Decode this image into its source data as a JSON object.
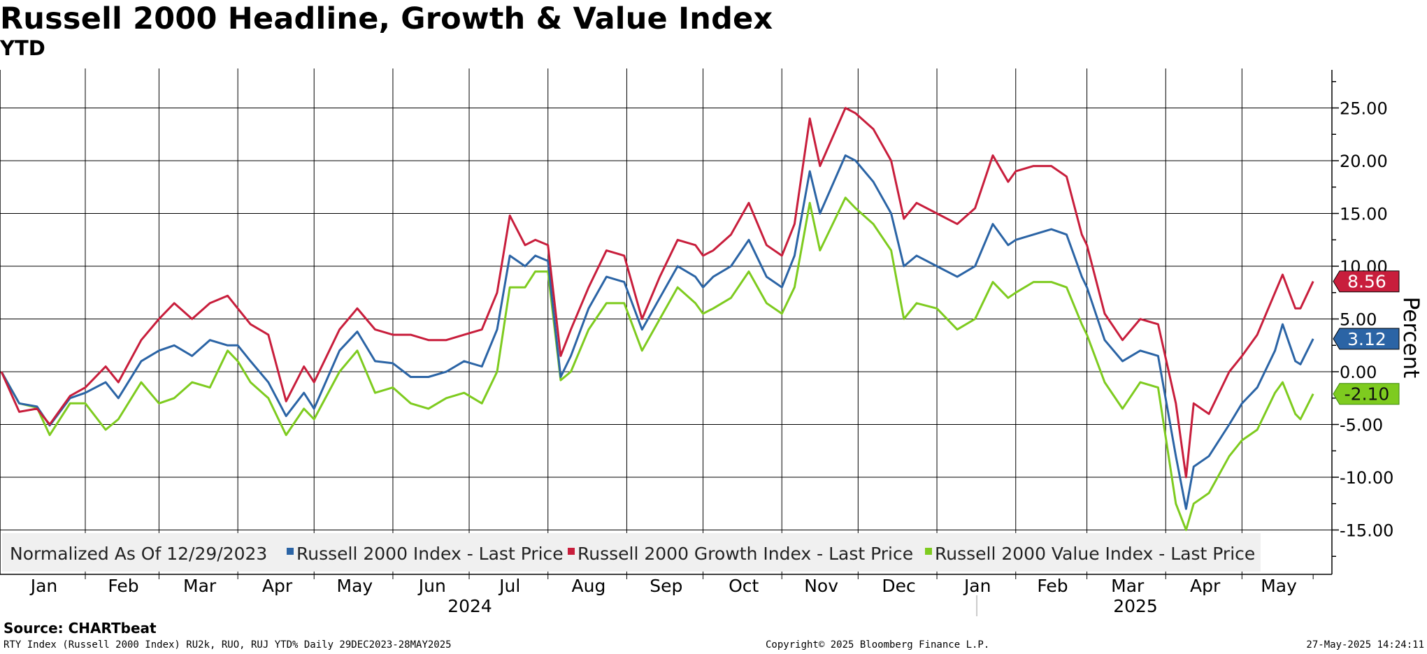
{
  "title": "Russell 2000 Headline, Growth & Value Index",
  "subtitle": "YTD",
  "source": "Source: CHARTbeat",
  "footer_left": "RTY Index (Russell 2000 Index) RU2k, RUO, RUJ YTD%  Daily 29DEC2023-28MAY2025",
  "footer_center": "Copyright© 2025 Bloomberg Finance L.P.",
  "footer_right": "27-May-2025 14:24:11",
  "colors": {
    "headline": "#2b64a5",
    "growth": "#c81e3c",
    "value": "#7ecb1f",
    "grid": "#000000"
  },
  "chart_data": {
    "type": "line",
    "title": "Russell 2000 Headline, Growth & Value Index",
    "subtitle": "YTD",
    "ylabel": "Percent",
    "ylim": [
      -17.5,
      28.5
    ],
    "yticks": [
      "25.00",
      "20.00",
      "15.00",
      "10.00",
      "5.00",
      "0.00",
      "-5.00",
      "-10.00",
      "-15.00"
    ],
    "ytick_values": [
      25,
      20,
      15,
      10,
      5,
      0,
      -5,
      -10,
      -15
    ],
    "months": [
      "Jan",
      "Feb",
      "Mar",
      "Apr",
      "May",
      "Jun",
      "Jul",
      "Aug",
      "Sep",
      "Oct",
      "Nov",
      "Dec",
      "Jan",
      "Feb",
      "Mar",
      "Apr",
      "May"
    ],
    "years": [
      "2024",
      "2025"
    ],
    "legend_prefix": "Normalized As Of 12/29/2023",
    "x_start": "2023-12-29",
    "x_end": "2025-05-28",
    "series": [
      {
        "name": "Russell 2000 Index - Last Price",
        "key": "headline",
        "last_label": "3.12",
        "last": 3.12,
        "points": [
          [
            "2023-12-29",
            0
          ],
          [
            "2024-01-05",
            -3.0
          ],
          [
            "2024-01-12",
            -3.3
          ],
          [
            "2024-01-17",
            -5.1
          ],
          [
            "2024-01-25",
            -2.5
          ],
          [
            "2024-01-31",
            -2.0
          ],
          [
            "2024-02-08",
            -1.0
          ],
          [
            "2024-02-13",
            -2.5
          ],
          [
            "2024-02-22",
            1.0
          ],
          [
            "2024-02-29",
            2.0
          ],
          [
            "2024-03-06",
            2.5
          ],
          [
            "2024-03-13",
            1.5
          ],
          [
            "2024-03-20",
            3.0
          ],
          [
            "2024-03-27",
            2.5
          ],
          [
            "2024-03-31",
            2.5
          ],
          [
            "2024-04-05",
            1.0
          ],
          [
            "2024-04-12",
            -1.0
          ],
          [
            "2024-04-19",
            -4.2
          ],
          [
            "2024-04-26",
            -2.0
          ],
          [
            "2024-04-30",
            -3.5
          ],
          [
            "2024-05-10",
            2.0
          ],
          [
            "2024-05-17",
            3.8
          ],
          [
            "2024-05-24",
            1.0
          ],
          [
            "2024-05-31",
            0.8
          ],
          [
            "2024-06-07",
            -0.5
          ],
          [
            "2024-06-14",
            -0.5
          ],
          [
            "2024-06-21",
            0.0
          ],
          [
            "2024-06-28",
            1.0
          ],
          [
            "2024-07-05",
            0.5
          ],
          [
            "2024-07-11",
            4.0
          ],
          [
            "2024-07-16",
            11.0
          ],
          [
            "2024-07-22",
            10.0
          ],
          [
            "2024-07-26",
            11.0
          ],
          [
            "2024-07-31",
            10.5
          ],
          [
            "2024-08-05",
            -0.5
          ],
          [
            "2024-08-09",
            1.5
          ],
          [
            "2024-08-16",
            6.0
          ],
          [
            "2024-08-23",
            9.0
          ],
          [
            "2024-08-30",
            8.5
          ],
          [
            "2024-09-06",
            4.0
          ],
          [
            "2024-09-13",
            7.0
          ],
          [
            "2024-09-20",
            10.0
          ],
          [
            "2024-09-27",
            9.0
          ],
          [
            "2024-09-30",
            8.0
          ],
          [
            "2024-10-04",
            9.0
          ],
          [
            "2024-10-11",
            10.0
          ],
          [
            "2024-10-18",
            12.5
          ],
          [
            "2024-10-25",
            9.0
          ],
          [
            "2024-10-31",
            8.0
          ],
          [
            "2024-11-05",
            11.0
          ],
          [
            "2024-11-11",
            19.0
          ],
          [
            "2024-11-15",
            15.0
          ],
          [
            "2024-11-25",
            20.5
          ],
          [
            "2024-11-29",
            20.0
          ],
          [
            "2024-12-06",
            18.0
          ],
          [
            "2024-12-13",
            15.0
          ],
          [
            "2024-12-18",
            10.0
          ],
          [
            "2024-12-23",
            11.0
          ],
          [
            "2024-12-31",
            10.0
          ],
          [
            "2025-01-08",
            9.0
          ],
          [
            "2025-01-15",
            10.0
          ],
          [
            "2025-01-22",
            14.0
          ],
          [
            "2025-01-28",
            12.0
          ],
          [
            "2025-01-31",
            12.5
          ],
          [
            "2025-02-07",
            13.0
          ],
          [
            "2025-02-14",
            13.5
          ],
          [
            "2025-02-20",
            13.0
          ],
          [
            "2025-02-26",
            9.0
          ],
          [
            "2025-02-28",
            8.0
          ],
          [
            "2025-03-07",
            3.0
          ],
          [
            "2025-03-14",
            1.0
          ],
          [
            "2025-03-21",
            2.0
          ],
          [
            "2025-03-28",
            1.5
          ],
          [
            "2025-04-04",
            -8.0
          ],
          [
            "2025-04-08",
            -13.0
          ],
          [
            "2025-04-11",
            -9.0
          ],
          [
            "2025-04-17",
            -8.0
          ],
          [
            "2025-04-25",
            -5.0
          ],
          [
            "2025-04-30",
            -3.0
          ],
          [
            "2025-05-06",
            -1.5
          ],
          [
            "2025-05-13",
            2.0
          ],
          [
            "2025-05-16",
            4.5
          ],
          [
            "2025-05-21",
            1.0
          ],
          [
            "2025-05-23",
            0.7
          ],
          [
            "2025-05-28",
            3.12
          ]
        ]
      },
      {
        "name": "Russell 2000 Growth Index - Last Price",
        "key": "growth",
        "last_label": "8.56",
        "last": 8.56,
        "points": [
          [
            "2023-12-29",
            0
          ],
          [
            "2024-01-05",
            -3.8
          ],
          [
            "2024-01-12",
            -3.5
          ],
          [
            "2024-01-17",
            -5.0
          ],
          [
            "2024-01-25",
            -2.3
          ],
          [
            "2024-01-31",
            -1.5
          ],
          [
            "2024-02-08",
            0.5
          ],
          [
            "2024-02-13",
            -1.0
          ],
          [
            "2024-02-22",
            3.0
          ],
          [
            "2024-02-29",
            5.0
          ],
          [
            "2024-03-06",
            6.5
          ],
          [
            "2024-03-13",
            5.0
          ],
          [
            "2024-03-20",
            6.5
          ],
          [
            "2024-03-27",
            7.2
          ],
          [
            "2024-03-31",
            6.0
          ],
          [
            "2024-04-05",
            4.5
          ],
          [
            "2024-04-12",
            3.5
          ],
          [
            "2024-04-19",
            -2.8
          ],
          [
            "2024-04-26",
            0.5
          ],
          [
            "2024-04-30",
            -1.0
          ],
          [
            "2024-05-10",
            4.0
          ],
          [
            "2024-05-17",
            6.0
          ],
          [
            "2024-05-24",
            4.0
          ],
          [
            "2024-05-31",
            3.5
          ],
          [
            "2024-06-07",
            3.5
          ],
          [
            "2024-06-14",
            3.0
          ],
          [
            "2024-06-21",
            3.0
          ],
          [
            "2024-06-28",
            3.5
          ],
          [
            "2024-07-05",
            4.0
          ],
          [
            "2024-07-11",
            7.5
          ],
          [
            "2024-07-16",
            14.8
          ],
          [
            "2024-07-22",
            12.0
          ],
          [
            "2024-07-26",
            12.5
          ],
          [
            "2024-07-31",
            12.0
          ],
          [
            "2024-08-05",
            1.5
          ],
          [
            "2024-08-09",
            4.0
          ],
          [
            "2024-08-16",
            8.0
          ],
          [
            "2024-08-23",
            11.5
          ],
          [
            "2024-08-30",
            11.0
          ],
          [
            "2024-09-06",
            5.0
          ],
          [
            "2024-09-13",
            9.0
          ],
          [
            "2024-09-20",
            12.5
          ],
          [
            "2024-09-27",
            12.0
          ],
          [
            "2024-09-30",
            11.0
          ],
          [
            "2024-10-04",
            11.5
          ],
          [
            "2024-10-11",
            13.0
          ],
          [
            "2024-10-18",
            16.0
          ],
          [
            "2024-10-25",
            12.0
          ],
          [
            "2024-10-31",
            11.0
          ],
          [
            "2024-11-05",
            14.0
          ],
          [
            "2024-11-11",
            24.0
          ],
          [
            "2024-11-15",
            19.5
          ],
          [
            "2024-11-25",
            25.0
          ],
          [
            "2024-11-29",
            24.5
          ],
          [
            "2024-12-06",
            23.0
          ],
          [
            "2024-12-13",
            20.0
          ],
          [
            "2024-12-18",
            14.5
          ],
          [
            "2024-12-23",
            16.0
          ],
          [
            "2024-12-31",
            15.0
          ],
          [
            "2025-01-08",
            14.0
          ],
          [
            "2025-01-15",
            15.5
          ],
          [
            "2025-01-22",
            20.5
          ],
          [
            "2025-01-28",
            18.0
          ],
          [
            "2025-01-31",
            19.0
          ],
          [
            "2025-02-07",
            19.5
          ],
          [
            "2025-02-14",
            19.5
          ],
          [
            "2025-02-20",
            18.5
          ],
          [
            "2025-02-26",
            13.0
          ],
          [
            "2025-02-28",
            12.0
          ],
          [
            "2025-03-07",
            5.5
          ],
          [
            "2025-03-14",
            3.0
          ],
          [
            "2025-03-21",
            5.0
          ],
          [
            "2025-03-28",
            4.5
          ],
          [
            "2025-04-04",
            -3.0
          ],
          [
            "2025-04-08",
            -10.0
          ],
          [
            "2025-04-11",
            -3.0
          ],
          [
            "2025-04-17",
            -4.0
          ],
          [
            "2025-04-25",
            0.0
          ],
          [
            "2025-04-30",
            1.5
          ],
          [
            "2025-05-06",
            3.5
          ],
          [
            "2025-05-13",
            7.5
          ],
          [
            "2025-05-16",
            9.2
          ],
          [
            "2025-05-21",
            6.0
          ],
          [
            "2025-05-23",
            6.0
          ],
          [
            "2025-05-28",
            8.56
          ]
        ]
      },
      {
        "name": "Russell 2000 Value Index - Last Price",
        "key": "value",
        "last_label": "-2.10",
        "last": -2.1,
        "points": [
          [
            "2023-12-29",
            0
          ],
          [
            "2024-01-05",
            -3.0
          ],
          [
            "2024-01-12",
            -3.4
          ],
          [
            "2024-01-17",
            -6.0
          ],
          [
            "2024-01-25",
            -3.0
          ],
          [
            "2024-01-31",
            -3.0
          ],
          [
            "2024-02-08",
            -5.5
          ],
          [
            "2024-02-13",
            -4.5
          ],
          [
            "2024-02-22",
            -1.0
          ],
          [
            "2024-02-29",
            -3.0
          ],
          [
            "2024-03-06",
            -2.5
          ],
          [
            "2024-03-13",
            -1.0
          ],
          [
            "2024-03-20",
            -1.5
          ],
          [
            "2024-03-27",
            2.0
          ],
          [
            "2024-03-31",
            1.0
          ],
          [
            "2024-04-05",
            -1.0
          ],
          [
            "2024-04-12",
            -2.5
          ],
          [
            "2024-04-19",
            -6.0
          ],
          [
            "2024-04-26",
            -3.5
          ],
          [
            "2024-04-30",
            -4.5
          ],
          [
            "2024-05-10",
            0.0
          ],
          [
            "2024-05-17",
            2.0
          ],
          [
            "2024-05-24",
            -2.0
          ],
          [
            "2024-05-31",
            -1.5
          ],
          [
            "2024-06-07",
            -3.0
          ],
          [
            "2024-06-14",
            -3.5
          ],
          [
            "2024-06-21",
            -2.5
          ],
          [
            "2024-06-28",
            -2.0
          ],
          [
            "2024-07-05",
            -3.0
          ],
          [
            "2024-07-11",
            0.0
          ],
          [
            "2024-07-16",
            8.0
          ],
          [
            "2024-07-22",
            8.0
          ],
          [
            "2024-07-26",
            9.5
          ],
          [
            "2024-07-31",
            9.5
          ],
          [
            "2024-08-05",
            -0.8
          ],
          [
            "2024-08-09",
            0.0
          ],
          [
            "2024-08-16",
            4.0
          ],
          [
            "2024-08-23",
            6.5
          ],
          [
            "2024-08-30",
            6.5
          ],
          [
            "2024-09-06",
            2.0
          ],
          [
            "2024-09-13",
            5.0
          ],
          [
            "2024-09-20",
            8.0
          ],
          [
            "2024-09-27",
            6.5
          ],
          [
            "2024-09-30",
            5.5
          ],
          [
            "2024-10-04",
            6.0
          ],
          [
            "2024-10-11",
            7.0
          ],
          [
            "2024-10-18",
            9.5
          ],
          [
            "2024-10-25",
            6.5
          ],
          [
            "2024-10-31",
            5.5
          ],
          [
            "2024-11-05",
            8.0
          ],
          [
            "2024-11-11",
            16.0
          ],
          [
            "2024-11-15",
            11.5
          ],
          [
            "2024-11-25",
            16.5
          ],
          [
            "2024-11-29",
            15.5
          ],
          [
            "2024-12-06",
            14.0
          ],
          [
            "2024-12-13",
            11.5
          ],
          [
            "2024-12-18",
            5.0
          ],
          [
            "2024-12-23",
            6.5
          ],
          [
            "2024-12-31",
            6.0
          ],
          [
            "2025-01-08",
            4.0
          ],
          [
            "2025-01-15",
            5.0
          ],
          [
            "2025-01-22",
            8.5
          ],
          [
            "2025-01-28",
            7.0
          ],
          [
            "2025-01-31",
            7.5
          ],
          [
            "2025-02-07",
            8.5
          ],
          [
            "2025-02-14",
            8.5
          ],
          [
            "2025-02-20",
            8.0
          ],
          [
            "2025-02-26",
            4.5
          ],
          [
            "2025-02-28",
            3.5
          ],
          [
            "2025-03-07",
            -1.0
          ],
          [
            "2025-03-14",
            -3.5
          ],
          [
            "2025-03-21",
            -1.0
          ],
          [
            "2025-03-28",
            -1.5
          ],
          [
            "2025-04-04",
            -12.5
          ],
          [
            "2025-04-08",
            -15.0
          ],
          [
            "2025-04-11",
            -12.5
          ],
          [
            "2025-04-17",
            -11.5
          ],
          [
            "2025-04-25",
            -8.0
          ],
          [
            "2025-04-30",
            -6.5
          ],
          [
            "2025-05-06",
            -5.5
          ],
          [
            "2025-05-13",
            -2.0
          ],
          [
            "2025-05-16",
            -1.0
          ],
          [
            "2025-05-21",
            -4.0
          ],
          [
            "2025-05-23",
            -4.5
          ],
          [
            "2025-05-28",
            -2.1
          ]
        ]
      }
    ]
  }
}
